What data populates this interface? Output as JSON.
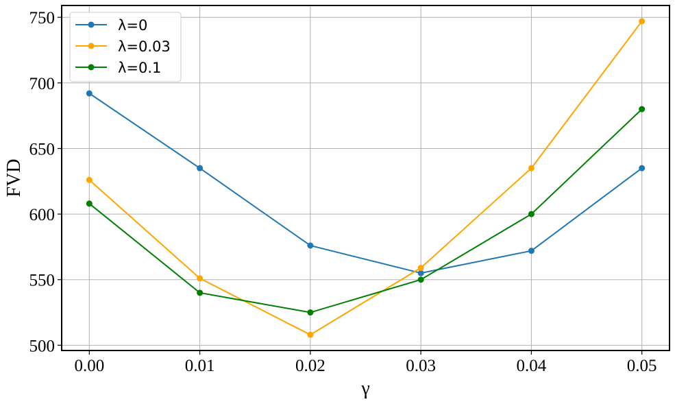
{
  "chart_data": {
    "type": "line",
    "title": "",
    "xlabel": "γ",
    "ylabel": "FVD",
    "x": [
      0.0,
      0.01,
      0.02,
      0.03,
      0.04,
      0.05
    ],
    "x_tick_labels": [
      "0.00",
      "0.01",
      "0.02",
      "0.03",
      "0.04",
      "0.05"
    ],
    "y_ticks": [
      500,
      550,
      600,
      650,
      700,
      750
    ],
    "y_tick_labels": [
      "500",
      "550",
      "600",
      "650",
      "700",
      "750"
    ],
    "xlim": [
      -0.0025,
      0.0525
    ],
    "ylim": [
      496,
      759
    ],
    "grid": true,
    "legend_position": "upper-left",
    "series": [
      {
        "name": "λ=0",
        "color": "#1f77b4",
        "values": [
          692,
          635,
          576,
          555,
          572,
          635
        ]
      },
      {
        "name": "λ=0.03",
        "color": "#ffa500",
        "values": [
          626,
          551,
          508,
          559,
          635,
          747
        ]
      },
      {
        "name": "λ=0.1",
        "color": "#008000",
        "values": [
          608,
          540,
          525,
          550,
          600,
          680
        ]
      }
    ]
  }
}
